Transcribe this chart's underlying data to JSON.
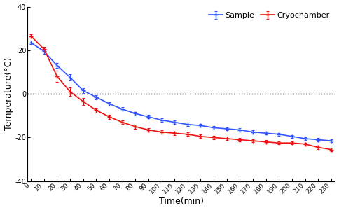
{
  "time": [
    0,
    10,
    20,
    30,
    40,
    50,
    60,
    70,
    80,
    90,
    100,
    110,
    120,
    130,
    140,
    150,
    160,
    170,
    180,
    190,
    200,
    210,
    220,
    230
  ],
  "sample_mean": [
    23.5,
    19.5,
    13.0,
    7.5,
    1.5,
    -1.5,
    -4.5,
    -7.0,
    -9.0,
    -10.5,
    -12.0,
    -13.0,
    -14.0,
    -14.5,
    -15.5,
    -16.0,
    -16.5,
    -17.5,
    -18.0,
    -18.5,
    -19.5,
    -20.5,
    -21.0,
    -21.5
  ],
  "sample_err": [
    0.8,
    1.0,
    1.2,
    1.5,
    1.2,
    1.0,
    0.8,
    0.8,
    0.8,
    0.8,
    0.8,
    0.8,
    0.8,
    0.7,
    0.7,
    0.7,
    0.7,
    0.7,
    0.7,
    0.7,
    0.7,
    0.7,
    0.7,
    0.7
  ],
  "cryo_mean": [
    26.5,
    20.5,
    8.0,
    1.0,
    -3.5,
    -7.5,
    -10.5,
    -13.0,
    -15.0,
    -16.5,
    -17.5,
    -18.0,
    -18.5,
    -19.5,
    -20.0,
    -20.5,
    -21.0,
    -21.5,
    -22.0,
    -22.5,
    -22.5,
    -23.0,
    -24.5,
    -25.5
  ],
  "cryo_err": [
    0.8,
    1.0,
    2.5,
    2.0,
    1.5,
    1.2,
    1.0,
    0.9,
    0.9,
    0.9,
    0.8,
    0.8,
    0.8,
    0.8,
    0.8,
    0.8,
    0.8,
    0.7,
    0.7,
    0.7,
    0.7,
    0.7,
    0.7,
    0.7
  ],
  "sample_color": "#3355ff",
  "cryo_color": "#ee1111",
  "ylabel": "Temperature(°C)",
  "xlabel": "Time(min)",
  "ylim": [
    -40,
    40
  ],
  "yticks": [
    -40,
    -20,
    0,
    20,
    40
  ],
  "xlim": [
    -3,
    233
  ],
  "xticks": [
    0,
    10,
    20,
    30,
    40,
    50,
    60,
    70,
    80,
    90,
    100,
    110,
    120,
    130,
    140,
    150,
    160,
    170,
    180,
    190,
    200,
    210,
    220,
    230
  ],
  "legend_sample": "Sample",
  "legend_cryo": "Cryochamber",
  "markersize": 4.5,
  "linewidth": 1.2,
  "elinewidth": 0.8,
  "capsize": 1.5,
  "capthick": 0.8,
  "background_color": "#ffffff",
  "tick_fontsize": 6.5,
  "label_fontsize": 9,
  "legend_fontsize": 8
}
